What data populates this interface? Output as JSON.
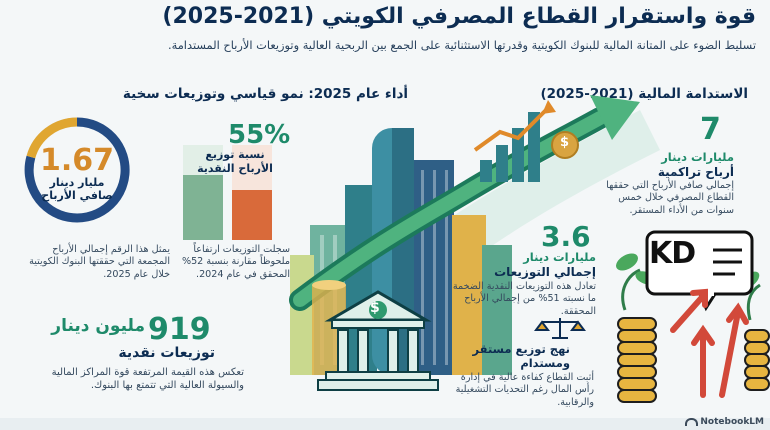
{
  "header": {
    "title": "قوة واستقرار القطاع المصرفي الكويتي (2021-2025)",
    "subtitle": "تسليط الضوء على المتانة المالية للبنوك الكويتية وقدرتها الاستثنائية على الجمع بين الربحية العالية وتوزيعات الأرباح المستدامة."
  },
  "left_section": {
    "heading": "أداء عام 2025: نمو قياسي وتوزيعات سخية",
    "profit": {
      "value": "1.67",
      "unit": "مليار دينار",
      "label": "صافي الأرباح",
      "description": "يمثل هذا الرقم إجمالي الأرباح المجمعة التي حققتها البنوك الكويتية خلال عام 2025."
    },
    "payout": {
      "value": "55%",
      "label": "نسبة توزيع الأرباح النقدية",
      "description": "سجلت التوزيعات ارتفاعاً ملحوظاً مقارنة بنسبة 52% المحقق في عام 2024.",
      "bar_fraction": 0.55
    },
    "cash_dividends": {
      "value": "919",
      "unit": "مليون دينار",
      "label": "توزيعات نقدية",
      "description": "تعكس هذه القيمة المرتفعة قوة المراكز المالية والسيولة العالية التي تتمتع بها البنوك."
    }
  },
  "right_section": {
    "heading": "الاستدامة المالية (2021-2025)",
    "cumulative": {
      "value": "7",
      "unit": "مليارات دينار",
      "label": "أرباح تراكمية",
      "description": "إجمالي صافي الأرباح التي حققها القطاع المصرفي خلال خمس سنوات من الأداء المستقر."
    },
    "total_dividends": {
      "value": "3.6",
      "unit": "مليارات دينار",
      "label": "إجمالي التوزيعات",
      "description": "تعادل هذه التوزيعات النقدية الضخمة ما نسبته 51% من إجمالي الأرباح المحققة."
    },
    "approach": {
      "label": "نهج توزيع مستقر ومستدام",
      "description": "أثبت القطاع كفاءة عالية في إدارة رأس المال رغم التحديات التشغيلية والرقابية."
    }
  },
  "illustration": {
    "kd_label": "KD",
    "bank_symbol": "$",
    "coin_symbol": "$"
  },
  "footer": {
    "brand": "NotebookLM"
  },
  "colors": {
    "navy": "#0c2c52",
    "green": "#1e8a6a",
    "orange": "#d77a2a",
    "red": "#d2493a"
  }
}
